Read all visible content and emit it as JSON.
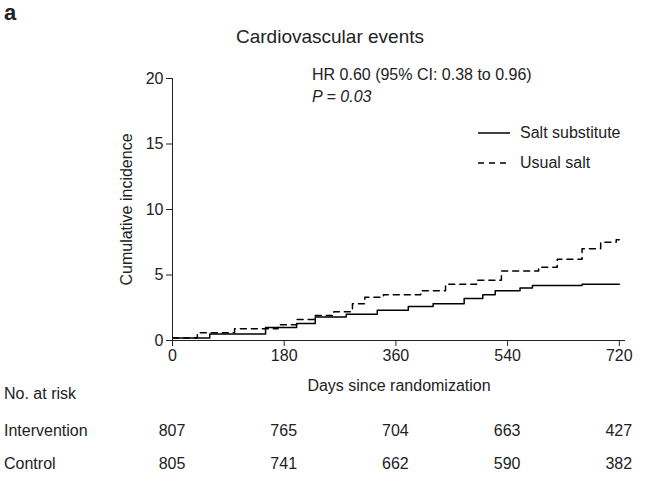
{
  "chart_data": {
    "type": "line",
    "panel_label": "a",
    "title": "Cardiovascular events",
    "annotations": [
      "HR 0.60 (95% CI: 0.38 to 0.96)",
      "P = 0.03"
    ],
    "x_label": "Days since randomization",
    "y_label": "Cumulative incidence",
    "xlim": [
      0,
      730
    ],
    "ylim": [
      0,
      20
    ],
    "xticks": [
      0,
      180,
      360,
      540,
      720
    ],
    "yticks": [
      0,
      5,
      10,
      15,
      20
    ],
    "grid": false,
    "legend": "top-right",
    "series": [
      {
        "name": "Salt substitute",
        "color": "#000000",
        "line_style": "solid",
        "x": [
          0,
          60,
          150,
          200,
          230,
          280,
          330,
          380,
          420,
          470,
          500,
          520,
          560,
          580,
          660,
          720
        ],
        "values": [
          0.2,
          0.5,
          1.0,
          1.3,
          1.8,
          2.0,
          2.3,
          2.6,
          2.8,
          3.2,
          3.5,
          3.8,
          4.0,
          4.2,
          4.3,
          4.3
        ]
      },
      {
        "name": "Usual salt",
        "color": "#000000",
        "line_style": "dashed",
        "x": [
          0,
          40,
          100,
          170,
          200,
          230,
          260,
          290,
          310,
          340,
          400,
          440,
          490,
          530,
          590,
          620,
          660,
          690,
          715,
          720
        ],
        "values": [
          0.2,
          0.6,
          0.9,
          1.2,
          1.6,
          1.9,
          2.2,
          2.8,
          3.3,
          3.5,
          3.8,
          4.3,
          4.6,
          5.3,
          5.6,
          6.2,
          7.0,
          7.5,
          7.7,
          7.7
        ]
      }
    ],
    "risk_table": {
      "title": "No. at risk",
      "x": [
        0,
        180,
        360,
        540,
        720
      ],
      "rows": [
        {
          "name": "Intervention",
          "values": [
            807,
            765,
            704,
            663,
            427
          ]
        },
        {
          "name": "Control",
          "values": [
            805,
            741,
            662,
            590,
            382
          ]
        }
      ]
    }
  }
}
